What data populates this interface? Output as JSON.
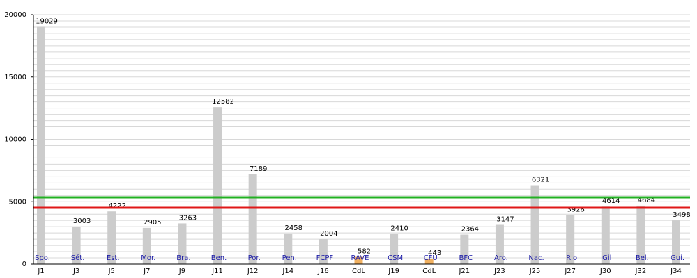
{
  "chart_data": {
    "type": "bar",
    "categories": [
      "J1",
      "J3",
      "J5",
      "J7",
      "J9",
      "J11",
      "J12",
      "J14",
      "J16",
      "CdL",
      "J19",
      "CdL",
      "J21",
      "J23",
      "J25",
      "J27",
      "J30",
      "J32",
      "J34"
    ],
    "opponents": [
      "Spo.",
      "Sét.",
      "Est.",
      "Mor.",
      "Bra.",
      "Ben.",
      "Por.",
      "Pen.",
      "FCPF",
      "RAVE",
      "CSM",
      "CFU",
      "BFC",
      "Aro.",
      "Nac.",
      "Rio",
      "Gil",
      "Bel.",
      "Gui."
    ],
    "values": [
      19029,
      3003,
      4222,
      2905,
      3263,
      12582,
      7189,
      2458,
      2004,
      582,
      2410,
      443,
      2364,
      3147,
      6321,
      3928,
      4614,
      4684,
      3498
    ],
    "colors": [
      "#cccccc",
      "#cccccc",
      "#cccccc",
      "#cccccc",
      "#cccccc",
      "#cccccc",
      "#cccccc",
      "#cccccc",
      "#cccccc",
      "#f0b060",
      "#cccccc",
      "#f0b060",
      "#cccccc",
      "#cccccc",
      "#cccccc",
      "#cccccc",
      "#cccccc",
      "#cccccc",
      "#cccccc"
    ],
    "reference_lines": [
      {
        "value": 5350,
        "color": "#22b022"
      },
      {
        "value": 4510,
        "color": "#e01818"
      }
    ],
    "ylim": [
      0,
      20000
    ],
    "yticks": [
      0,
      5000,
      10000,
      15000,
      20000
    ],
    "minor_yticks": [
      0,
      500,
      1000,
      1500,
      2000,
      2500,
      3000,
      3500,
      4000,
      4500,
      5000,
      5500,
      6000,
      6500,
      7000,
      7500,
      8000,
      8500,
      9000,
      9500,
      10000,
      10500,
      11000,
      11500,
      12000,
      12500,
      13000,
      13500,
      14000,
      14500,
      15000,
      15500,
      16000,
      16500,
      17000,
      17500,
      18000,
      18500,
      19000,
      19500,
      20000
    ],
    "grid": true
  }
}
